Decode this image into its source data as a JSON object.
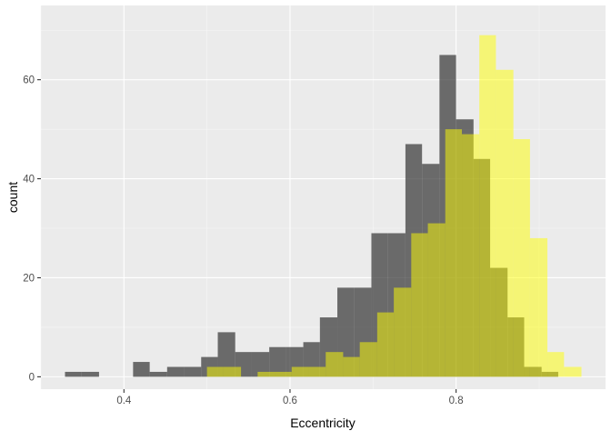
{
  "chart_data": {
    "type": "bar",
    "subtype": "overlaid-histogram",
    "title": "",
    "xlabel": "Eccentricity",
    "ylabel": "count",
    "xlim": [
      0.3,
      0.98
    ],
    "ylim": [
      -2.5,
      75
    ],
    "x_ticks": [
      0.4,
      0.6,
      0.8
    ],
    "x_tick_labels": [
      "0.4",
      "0.6",
      "0.8"
    ],
    "y_ticks": [
      0,
      20,
      40,
      60
    ],
    "y_tick_labels": [
      "0",
      "20",
      "40",
      "60"
    ],
    "grid": true,
    "legend": "none",
    "series": [
      {
        "color": "#333333",
        "opacity": 0.7,
        "bins": [
          {
            "x0": 0.329,
            "x1": 0.349,
            "count": 1
          },
          {
            "x0": 0.349,
            "x1": 0.37,
            "count": 1
          },
          {
            "x0": 0.411,
            "x1": 0.431,
            "count": 3
          },
          {
            "x0": 0.431,
            "x1": 0.452,
            "count": 1
          },
          {
            "x0": 0.452,
            "x1": 0.472,
            "count": 2
          },
          {
            "x0": 0.472,
            "x1": 0.493,
            "count": 2
          },
          {
            "x0": 0.493,
            "x1": 0.513,
            "count": 4
          },
          {
            "x0": 0.513,
            "x1": 0.534,
            "count": 9
          },
          {
            "x0": 0.534,
            "x1": 0.554,
            "count": 5
          },
          {
            "x0": 0.554,
            "x1": 0.575,
            "count": 5
          },
          {
            "x0": 0.575,
            "x1": 0.595,
            "count": 6
          },
          {
            "x0": 0.595,
            "x1": 0.616,
            "count": 6
          },
          {
            "x0": 0.616,
            "x1": 0.636,
            "count": 7
          },
          {
            "x0": 0.636,
            "x1": 0.657,
            "count": 12
          },
          {
            "x0": 0.657,
            "x1": 0.677,
            "count": 18
          },
          {
            "x0": 0.677,
            "x1": 0.698,
            "count": 18
          },
          {
            "x0": 0.698,
            "x1": 0.718,
            "count": 29
          },
          {
            "x0": 0.718,
            "x1": 0.739,
            "count": 29
          },
          {
            "x0": 0.739,
            "x1": 0.759,
            "count": 47
          },
          {
            "x0": 0.759,
            "x1": 0.78,
            "count": 43
          },
          {
            "x0": 0.78,
            "x1": 0.8,
            "count": 65
          },
          {
            "x0": 0.8,
            "x1": 0.821,
            "count": 52
          },
          {
            "x0": 0.821,
            "x1": 0.841,
            "count": 44
          },
          {
            "x0": 0.841,
            "x1": 0.862,
            "count": 22
          },
          {
            "x0": 0.862,
            "x1": 0.882,
            "count": 12
          },
          {
            "x0": 0.882,
            "x1": 0.903,
            "count": 2
          },
          {
            "x0": 0.903,
            "x1": 0.923,
            "count": 1
          }
        ]
      },
      {
        "color": "#ffff00",
        "opacity": 0.5,
        "bins": [
          {
            "x0": 0.5,
            "x1": 0.52,
            "count": 2
          },
          {
            "x0": 0.52,
            "x1": 0.541,
            "count": 2
          },
          {
            "x0": 0.561,
            "x1": 0.582,
            "count": 1
          },
          {
            "x0": 0.582,
            "x1": 0.602,
            "count": 1
          },
          {
            "x0": 0.602,
            "x1": 0.623,
            "count": 2
          },
          {
            "x0": 0.623,
            "x1": 0.643,
            "count": 2
          },
          {
            "x0": 0.643,
            "x1": 0.664,
            "count": 5
          },
          {
            "x0": 0.664,
            "x1": 0.684,
            "count": 4
          },
          {
            "x0": 0.684,
            "x1": 0.705,
            "count": 7
          },
          {
            "x0": 0.705,
            "x1": 0.725,
            "count": 13
          },
          {
            "x0": 0.725,
            "x1": 0.746,
            "count": 18
          },
          {
            "x0": 0.746,
            "x1": 0.766,
            "count": 29
          },
          {
            "x0": 0.766,
            "x1": 0.787,
            "count": 31
          },
          {
            "x0": 0.787,
            "x1": 0.807,
            "count": 50
          },
          {
            "x0": 0.807,
            "x1": 0.828,
            "count": 49
          },
          {
            "x0": 0.828,
            "x1": 0.848,
            "count": 69
          },
          {
            "x0": 0.848,
            "x1": 0.869,
            "count": 62
          },
          {
            "x0": 0.869,
            "x1": 0.889,
            "count": 48
          },
          {
            "x0": 0.889,
            "x1": 0.91,
            "count": 28
          },
          {
            "x0": 0.91,
            "x1": 0.93,
            "count": 5
          },
          {
            "x0": 0.93,
            "x1": 0.951,
            "count": 2
          }
        ]
      }
    ]
  }
}
